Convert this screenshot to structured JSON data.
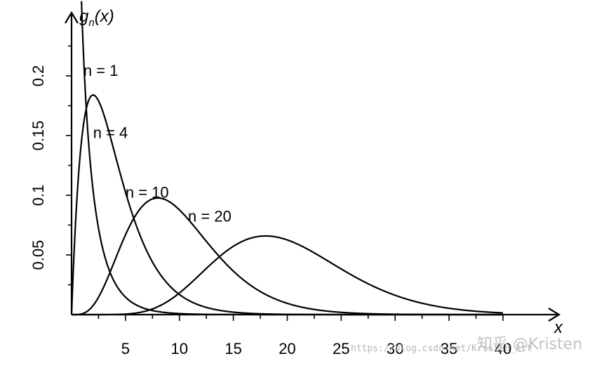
{
  "chart_data": {
    "type": "line",
    "ylabel": "g",
    "ylabel_sub": "n",
    "ylabel_arg": "(x)",
    "xlabel": "x",
    "xlim": [
      0,
      40
    ],
    "ylim": [
      0,
      0.23
    ],
    "xticks": [
      5,
      10,
      15,
      20,
      25,
      30,
      35,
      40
    ],
    "xtick_labels": [
      "5",
      "10",
      "15",
      "20",
      "25",
      "30",
      "35",
      "40"
    ],
    "yticks": [
      0.05,
      0.1,
      0.15,
      0.2
    ],
    "ytick_labels": [
      "0.05",
      "0.1",
      "0.15",
      "0.2"
    ],
    "grid": false,
    "series": [
      {
        "name": "n = 1",
        "dof": 1,
        "label_at": [
          1.1,
          0.2
        ]
      },
      {
        "name": "n = 4",
        "dof": 4,
        "label_at": [
          2.0,
          0.148
        ]
      },
      {
        "name": "n = 10",
        "dof": 10,
        "label_at": [
          5.0,
          0.098
        ]
      },
      {
        "name": "n = 20",
        "dof": 20,
        "label_at": [
          10.8,
          0.078
        ]
      }
    ]
  },
  "watermark": {
    "url": "https://blog.csdn.net/Kristen_ktt",
    "brand": "知乎 @Kristen"
  }
}
